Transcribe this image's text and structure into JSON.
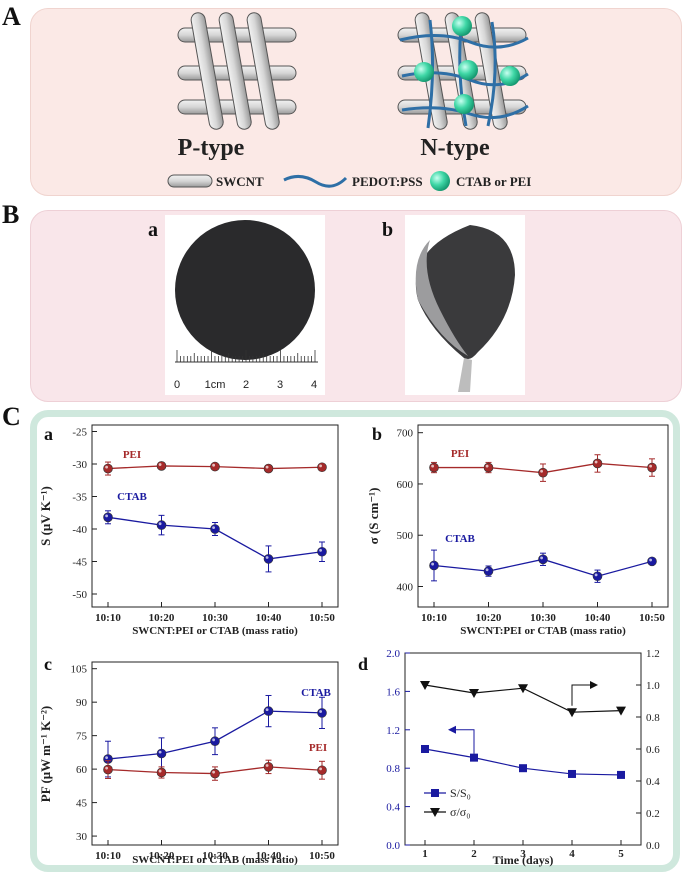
{
  "panel_labels": {
    "A": "A",
    "B": "B",
    "C": "C"
  },
  "panelA": {
    "p_type": "P-type",
    "n_type": "N-type",
    "legend": {
      "swcnt": "SWCNT",
      "pedot": "PEDOT:PSS",
      "ctab": "CTAB or PEI"
    },
    "colors": {
      "tube": "#d0d0d0",
      "pedot": "#2e6fa6",
      "sphere": "#3fd7a6"
    }
  },
  "panelB": {
    "a": "a",
    "b": "b",
    "ruler": {
      "ticks": [
        "0",
        "1cm",
        "2",
        "3",
        "4"
      ]
    }
  },
  "panelC": {
    "a": "a",
    "b": "b",
    "c": "c",
    "d": "d"
  },
  "chart_data": [
    {
      "type": "line",
      "id": "a",
      "categories": [
        "10:10",
        "10:20",
        "10:30",
        "10:40",
        "10:50"
      ],
      "series": [
        {
          "name": "PEI",
          "values": [
            -30.7,
            -30.3,
            -30.4,
            -30.7,
            -30.5
          ],
          "errors": [
            1.0,
            0.3,
            0.3,
            0.3,
            0.3
          ],
          "color": "#a52a2a"
        },
        {
          "name": "CTAB",
          "values": [
            -38.2,
            -39.4,
            -40.0,
            -44.6,
            -43.5
          ],
          "errors": [
            1.0,
            1.5,
            1.0,
            2.0,
            1.5
          ],
          "color": "#1a1aa0"
        }
      ],
      "ylabel": "S (μV K⁻¹)",
      "xlabel": "SWCNT:PEI or CTAB (mass ratio)",
      "ylim": [
        -52,
        -24
      ],
      "yticks": [
        "-25",
        "-30",
        "-35",
        "-40",
        "-45",
        "-50"
      ]
    },
    {
      "type": "line",
      "id": "b",
      "categories": [
        "10:10",
        "10:20",
        "10:30",
        "10:40",
        "10:50"
      ],
      "series": [
        {
          "name": "PEI",
          "values": [
            632,
            632,
            622,
            640,
            632
          ],
          "errors": [
            10,
            10,
            17,
            17,
            17
          ],
          "color": "#a52a2a"
        },
        {
          "name": "CTAB",
          "values": [
            441,
            430,
            453,
            420,
            449
          ],
          "errors": [
            30,
            10,
            12,
            12,
            6
          ],
          "color": "#1a1aa0"
        }
      ],
      "ylabel": "σ (S cm⁻¹)",
      "xlabel": "SWCNT:PEI or CTAB (mass ratio)",
      "ylim": [
        360,
        715
      ],
      "yticks": [
        "400",
        "500",
        "600",
        "700"
      ]
    },
    {
      "type": "line",
      "id": "c",
      "categories": [
        "10:10",
        "10:20",
        "10:30",
        "10:40",
        "10:50"
      ],
      "series": [
        {
          "name": "CTAB",
          "values": [
            64.5,
            67.0,
            72.5,
            86.0,
            85.2
          ],
          "errors": [
            8,
            7,
            6,
            7,
            7
          ],
          "color": "#1a1aa0"
        },
        {
          "name": "PEI",
          "values": [
            59.8,
            58.5,
            58.0,
            61.0,
            59.5
          ],
          "errors": [
            4,
            2.5,
            3,
            3,
            4
          ],
          "color": "#a52a2a"
        }
      ],
      "ylabel": "PF (μW m⁻¹ K⁻²)",
      "xlabel": "SWCNT:PEI or CTAB (mass ratio)",
      "ylim": [
        26,
        108
      ],
      "yticks": [
        "30",
        "45",
        "60",
        "75",
        "90",
        "105"
      ]
    },
    {
      "type": "line",
      "id": "d",
      "x": [
        1,
        2,
        3,
        4,
        5
      ],
      "series": [
        {
          "name": "S/S0",
          "values": [
            1.0,
            0.91,
            0.8,
            0.74,
            0.73
          ],
          "axis": "left",
          "color": "#1a1aa0"
        },
        {
          "name": "σ/σ0",
          "values": [
            1.0,
            0.95,
            0.98,
            0.83,
            0.84
          ],
          "axis": "right",
          "color": "#111111"
        }
      ],
      "xlabel": "Time (days)",
      "ylim_left": [
        0.0,
        2.0
      ],
      "ylim_right": [
        0.0,
        1.2
      ],
      "yticks_left": [
        "0.0",
        "0.4",
        "0.8",
        "1.2",
        "1.6",
        "2.0"
      ],
      "yticks_right": [
        "0.0",
        "0.2",
        "0.4",
        "0.6",
        "0.8",
        "1.0",
        "1.2"
      ],
      "xticks": [
        "1",
        "2",
        "3",
        "4",
        "5"
      ],
      "legend": [
        "S/S₀",
        "σ/σ₀"
      ]
    }
  ]
}
